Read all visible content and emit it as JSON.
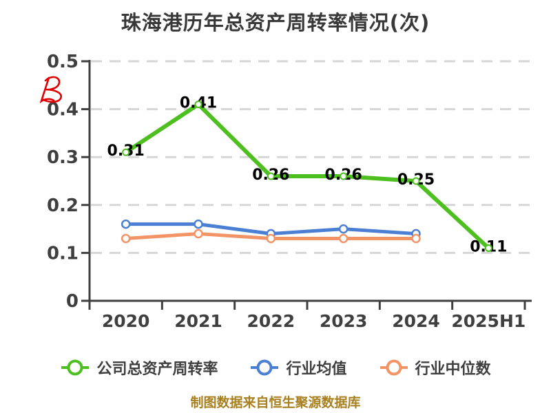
{
  "title": "珠海港历年总资产周转率情况(次)",
  "source_note": "制图数据来自恒生聚源数据库",
  "chart_data": {
    "type": "line",
    "title": "珠海港历年总资产周转率情况(次)",
    "categories": [
      "2020",
      "2021",
      "2022",
      "2023",
      "2024",
      "2025H1"
    ],
    "series": [
      {
        "name": "公司总资产周转率",
        "color": "#4dbf1f",
        "values": [
          0.31,
          0.41,
          0.26,
          0.26,
          0.25,
          0.11
        ],
        "point_labels": [
          "0.31",
          "0.41",
          "0.26",
          "0.26",
          "0.25",
          "0.11"
        ]
      },
      {
        "name": "行业均值",
        "color": "#4a7fd4",
        "values": [
          0.16,
          0.16,
          0.14,
          0.15,
          0.14,
          null
        ],
        "point_labels": []
      },
      {
        "name": "行业中位数",
        "color": "#f29466",
        "values": [
          0.13,
          0.14,
          0.13,
          0.13,
          0.13,
          null
        ],
        "point_labels": []
      }
    ],
    "ylim": [
      0,
      0.5
    ],
    "ytick_labels": [
      "0",
      "0.1",
      "0.2",
      "0.3",
      "0.4",
      "0.5"
    ],
    "grid": "horizontal-dashed",
    "legend_position": "bottom"
  },
  "colors": {
    "background": "#ffffff",
    "grid": "#d6d6d6",
    "axis": "#3f3f3f",
    "tick_label": "#3f3f3f",
    "data_label": "#000000",
    "title": "#383838",
    "legend_text": "#3f3f3f",
    "source_note": "#a9801f",
    "red_mark": "#e00000"
  }
}
